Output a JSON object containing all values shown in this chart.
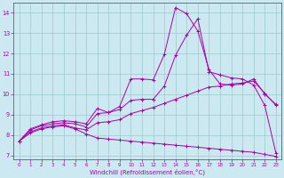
{
  "background_color": "#cce8f0",
  "line_color": "#aa00aa",
  "grid_color": "#99cccc",
  "xlabel": "Windchill (Refroidissement éolien,°C)",
  "xlabel_color": "#aa00aa",
  "tick_color": "#aa00aa",
  "ylim": [
    6.8,
    14.5
  ],
  "xlim": [
    -0.5,
    23.5
  ],
  "yticks": [
    7,
    8,
    9,
    10,
    11,
    12,
    13,
    14
  ],
  "xticks": [
    0,
    1,
    2,
    3,
    4,
    5,
    6,
    7,
    8,
    9,
    10,
    11,
    12,
    13,
    14,
    15,
    16,
    17,
    18,
    19,
    20,
    21,
    22,
    23
  ],
  "line1_x": [
    0,
    1,
    2,
    3,
    4,
    5,
    6,
    7,
    8,
    9,
    10,
    11,
    12,
    13,
    14,
    15,
    16,
    17,
    18,
    19,
    20,
    21,
    22,
    23
  ],
  "line1_y": [
    7.7,
    8.3,
    8.5,
    8.65,
    8.7,
    8.65,
    8.55,
    9.3,
    9.1,
    9.4,
    10.75,
    10.75,
    10.7,
    11.95,
    14.25,
    13.95,
    13.1,
    11.2,
    10.5,
    10.45,
    10.5,
    10.75,
    10.0,
    9.5
  ],
  "line2_x": [
    0,
    1,
    2,
    3,
    4,
    5,
    6,
    7,
    8,
    9,
    10,
    11,
    12,
    13,
    14,
    15,
    16,
    17,
    18,
    19,
    20,
    21,
    22,
    23
  ],
  "line2_y": [
    7.7,
    8.25,
    8.45,
    8.55,
    8.6,
    8.55,
    8.4,
    9.05,
    9.1,
    9.25,
    9.7,
    9.75,
    9.75,
    10.4,
    11.9,
    12.9,
    13.7,
    11.1,
    10.95,
    10.8,
    10.75,
    10.45,
    9.45,
    7.1
  ],
  "line3_x": [
    0,
    1,
    2,
    3,
    4,
    5,
    6,
    7,
    8,
    9,
    10,
    11,
    12,
    13,
    14,
    15,
    16,
    17,
    18,
    19,
    20,
    21,
    22,
    23
  ],
  "line3_y": [
    7.7,
    8.15,
    8.35,
    8.45,
    8.5,
    8.35,
    8.25,
    8.6,
    8.65,
    8.75,
    9.05,
    9.2,
    9.35,
    9.55,
    9.75,
    9.95,
    10.15,
    10.35,
    10.4,
    10.5,
    10.55,
    10.65,
    10.05,
    9.45
  ],
  "line4_x": [
    0,
    1,
    2,
    3,
    4,
    5,
    6,
    7,
    8,
    9,
    10,
    11,
    12,
    13,
    14,
    15,
    16,
    17,
    18,
    19,
    20,
    21,
    22,
    23
  ],
  "line4_y": [
    7.7,
    8.1,
    8.3,
    8.4,
    8.45,
    8.3,
    8.05,
    7.85,
    7.8,
    7.75,
    7.7,
    7.65,
    7.6,
    7.55,
    7.5,
    7.45,
    7.4,
    7.35,
    7.3,
    7.25,
    7.2,
    7.15,
    7.05,
    6.95
  ]
}
